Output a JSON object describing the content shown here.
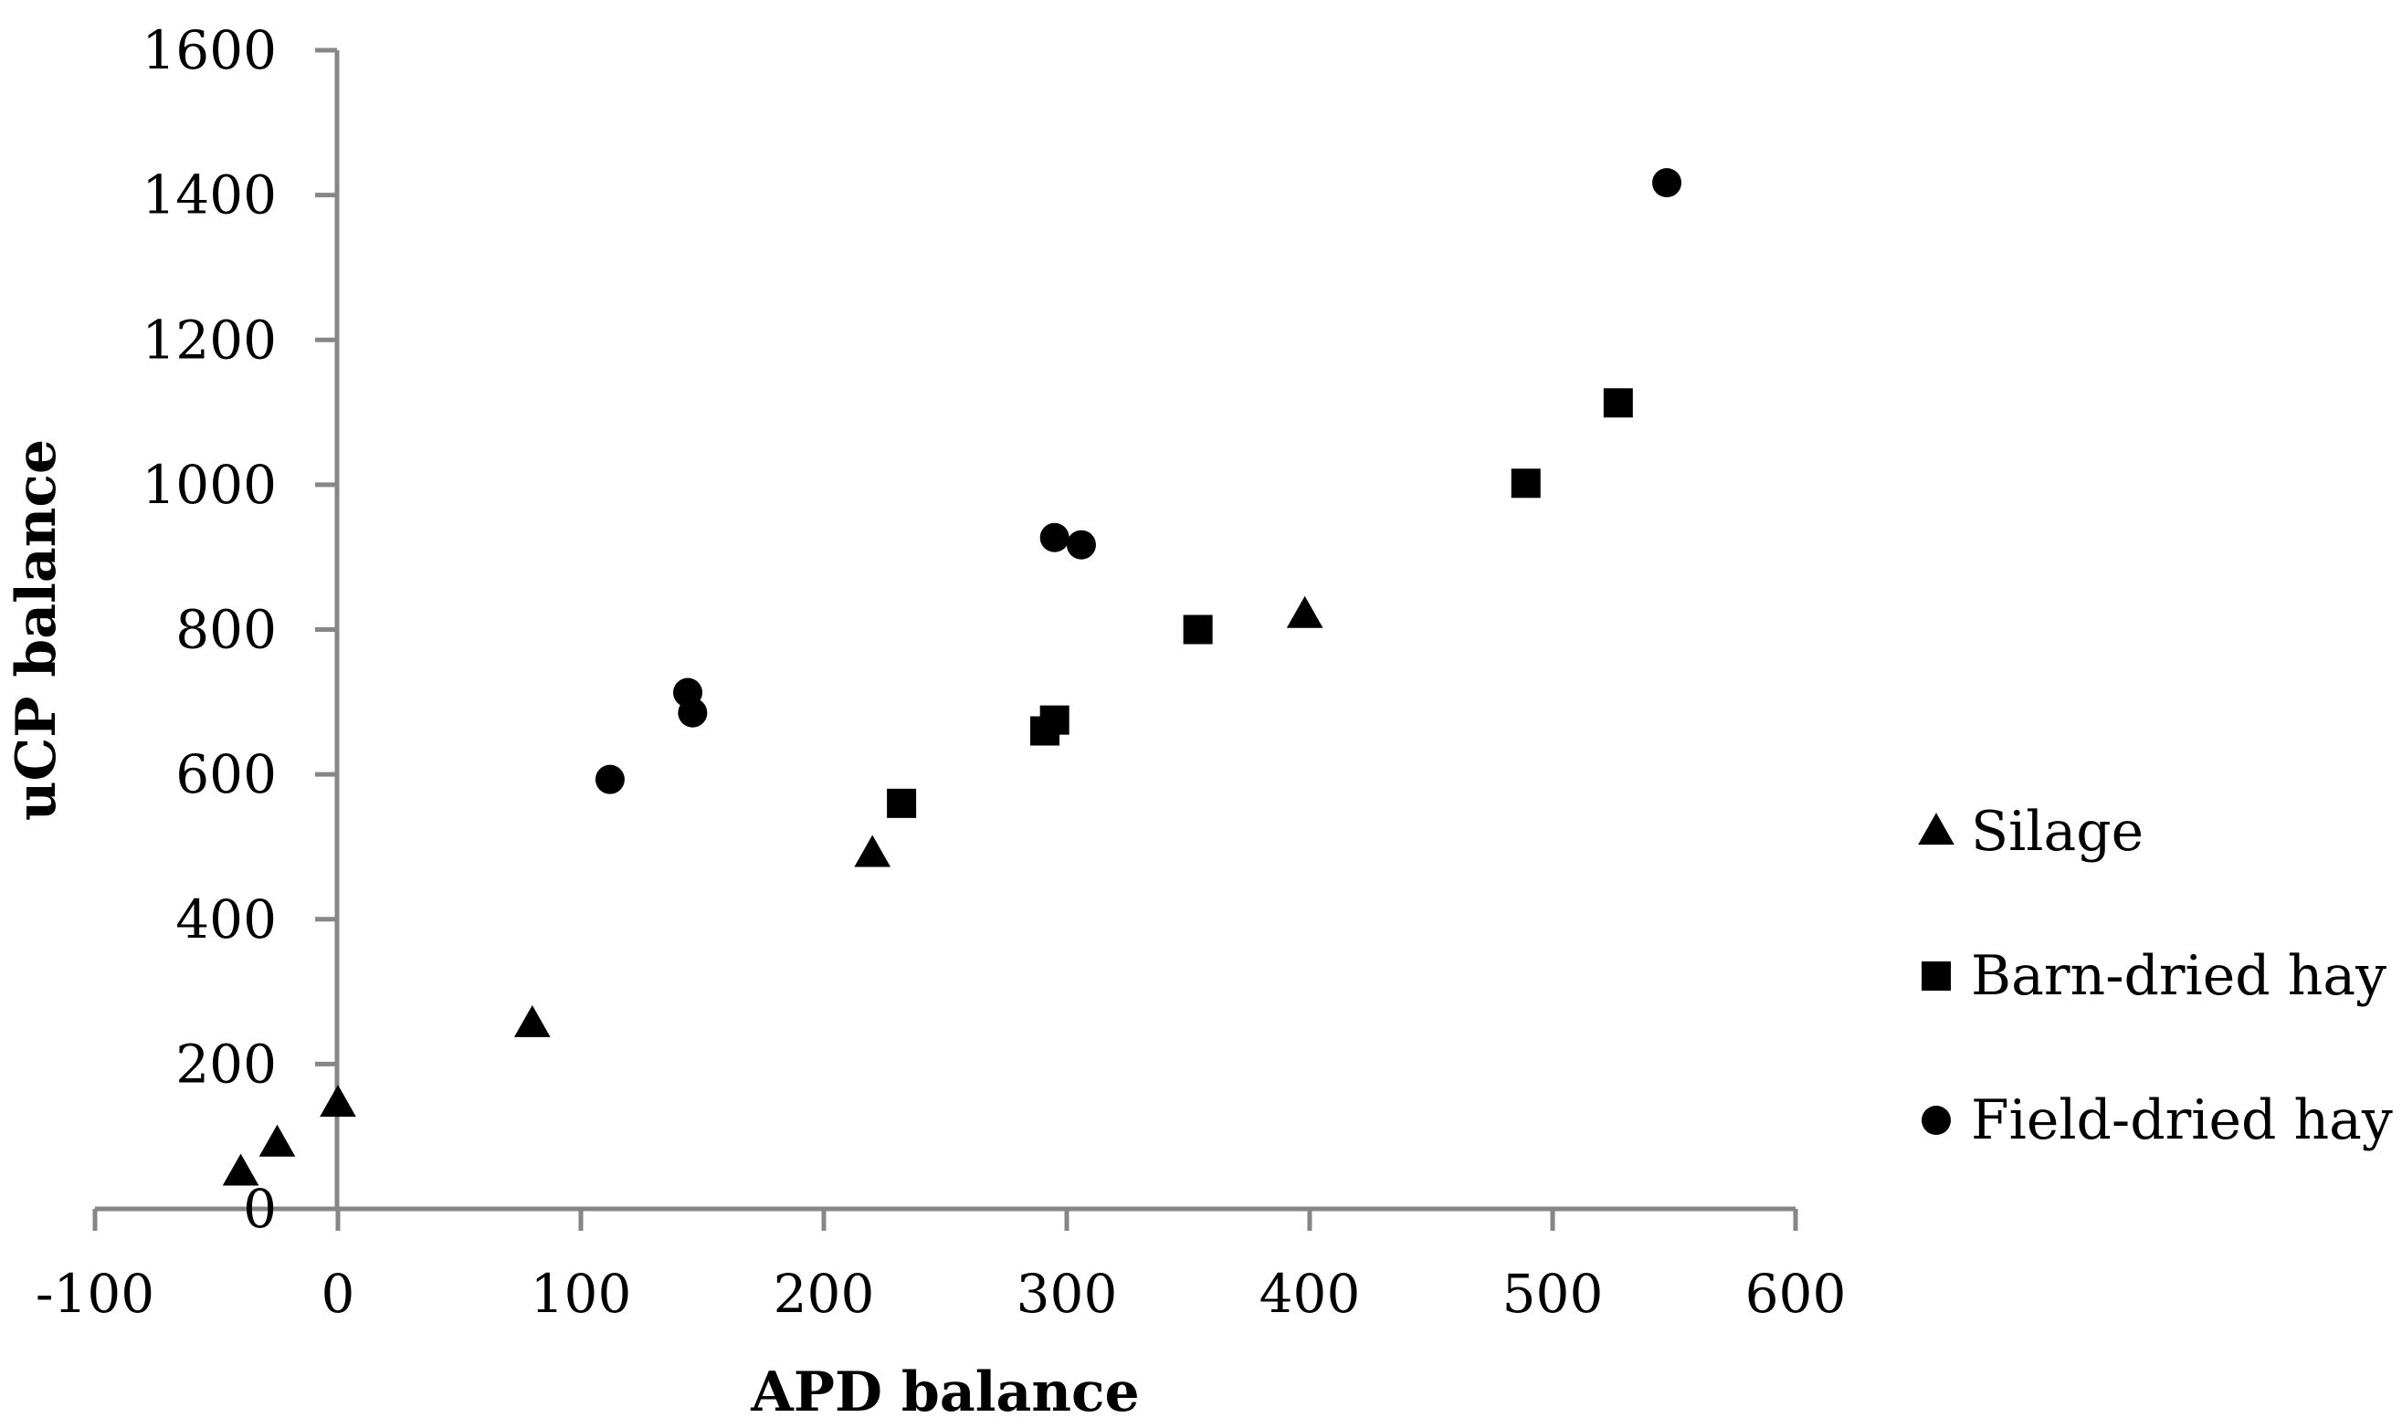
{
  "chart_data": {
    "type": "scatter",
    "title": "",
    "xlabel": "APD balance",
    "ylabel": "uCP balance",
    "xlim": [
      -100,
      600
    ],
    "ylim": [
      0,
      1600
    ],
    "x_ticks": [
      "-100",
      "0",
      "100",
      "200",
      "300",
      "400",
      "500",
      "600"
    ],
    "y_ticks": [
      "0",
      "200",
      "400",
      "600",
      "800",
      "1000",
      "1200",
      "1400",
      "1600"
    ],
    "grid": false,
    "legend_position": "right",
    "series": [
      {
        "name": "Silage",
        "marker": "triangle",
        "color": "#000000",
        "points": [
          [
            -40,
            50
          ],
          [
            -25,
            90
          ],
          [
            0,
            145
          ],
          [
            80,
            255
          ],
          [
            220,
            490
          ],
          [
            398,
            820
          ]
        ]
      },
      {
        "name": "Barn-dried hay",
        "marker": "square",
        "color": "#000000",
        "points": [
          [
            232,
            560
          ],
          [
            291,
            660
          ],
          [
            295,
            675
          ],
          [
            354,
            800
          ],
          [
            489,
            1002
          ],
          [
            527,
            1113
          ]
        ]
      },
      {
        "name": "Field-dried hay",
        "marker": "circle",
        "color": "#000000",
        "points": [
          [
            112,
            593
          ],
          [
            144,
            713
          ],
          [
            146,
            685
          ],
          [
            295,
            927
          ],
          [
            306,
            917
          ],
          [
            547,
            1417
          ]
        ]
      }
    ]
  }
}
